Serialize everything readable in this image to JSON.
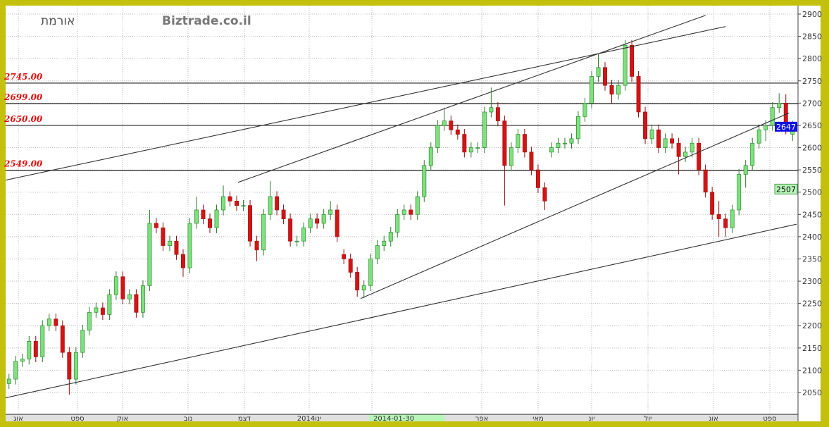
{
  "chart_data": {
    "type": "candlestick",
    "title": "אורמת",
    "watermark": "Biztrade.co.il",
    "ylim": [
      2020,
      2920
    ],
    "y_ticks": [
      2050,
      2100,
      2150,
      2200,
      2250,
      2300,
      2350,
      2400,
      2450,
      2500,
      2550,
      2600,
      2650,
      2700,
      2750,
      2800,
      2850,
      2900
    ],
    "x_tick_labels": [
      "אוג",
      "ספט",
      "אוק",
      "נוב",
      "דצמ",
      "ינו2014",
      "2014-01-30",
      "אפר",
      "מאי",
      "יונ",
      "יול",
      "אוג",
      "ספט"
    ],
    "highlighted_date": "2014-01-30",
    "grid": true,
    "last_price": "2647",
    "secondary_marker": "2507",
    "colors": {
      "up": "#7ee07e",
      "down": "#d41414",
      "last_price_bg": "#1010e0",
      "marker_bg": "#b8f5b8",
      "frame": "#c4c00e"
    },
    "horizontal_levels": [
      {
        "value": 2745,
        "label": "2745.00"
      },
      {
        "value": 2699,
        "label": "2699.00"
      },
      {
        "value": 2650,
        "label": "2650.00"
      },
      {
        "value": 2549,
        "label": "2549.00"
      }
    ],
    "trendlines": [
      {
        "from": [
          -0.5,
          2038
        ],
        "to": [
          117.6,
          2428
        ]
      },
      {
        "from": [
          -0.5,
          2527
        ],
        "to": [
          107,
          2872
        ]
      },
      {
        "from": [
          34.2,
          2522
        ],
        "to": [
          104,
          2897
        ]
      },
      {
        "from": [
          52.5,
          2261
        ],
        "to": [
          116.5,
          2678
        ]
      }
    ],
    "candles_ohlc": [
      [
        2070,
        2092,
        2058,
        2080
      ],
      [
        2080,
        2132,
        2068,
        2120
      ],
      [
        2120,
        2137,
        2108,
        2125
      ],
      [
        2125,
        2177,
        2113,
        2165
      ],
      [
        2165,
        2177,
        2118,
        2130
      ],
      [
        2130,
        2212,
        2118,
        2200
      ],
      [
        2200,
        2227,
        2188,
        2215
      ],
      [
        2215,
        2227,
        2188,
        2200
      ],
      [
        2200,
        2212,
        2128,
        2140
      ],
      [
        2140,
        2152,
        2045,
        2080
      ],
      [
        2080,
        2152,
        2068,
        2140
      ],
      [
        2140,
        2202,
        2128,
        2190
      ],
      [
        2190,
        2242,
        2178,
        2230
      ],
      [
        2230,
        2252,
        2218,
        2240
      ],
      [
        2240,
        2252,
        2213,
        2225
      ],
      [
        2225,
        2282,
        2213,
        2270
      ],
      [
        2270,
        2322,
        2258,
        2310
      ],
      [
        2310,
        2322,
        2248,
        2260
      ],
      [
        2260,
        2282,
        2248,
        2270
      ],
      [
        2270,
        2282,
        2218,
        2230
      ],
      [
        2230,
        2302,
        2218,
        2290
      ],
      [
        2290,
        2460,
        2278,
        2430
      ],
      [
        2430,
        2442,
        2408,
        2420
      ],
      [
        2420,
        2432,
        2368,
        2380
      ],
      [
        2380,
        2402,
        2368,
        2390
      ],
      [
        2390,
        2402,
        2348,
        2360
      ],
      [
        2360,
        2372,
        2310,
        2330
      ],
      [
        2330,
        2442,
        2318,
        2430
      ],
      [
        2430,
        2490,
        2418,
        2460
      ],
      [
        2460,
        2472,
        2428,
        2440
      ],
      [
        2440,
        2452,
        2408,
        2420
      ],
      [
        2420,
        2472,
        2408,
        2460
      ],
      [
        2460,
        2515,
        2448,
        2490
      ],
      [
        2490,
        2502,
        2468,
        2480
      ],
      [
        2480,
        2492,
        2458,
        2470
      ],
      [
        2470,
        2482,
        2458,
        2470
      ],
      [
        2470,
        2482,
        2378,
        2390
      ],
      [
        2390,
        2402,
        2345,
        2370
      ],
      [
        2370,
        2462,
        2358,
        2450
      ],
      [
        2450,
        2525,
        2438,
        2490
      ],
      [
        2490,
        2502,
        2448,
        2460
      ],
      [
        2460,
        2472,
        2428,
        2440
      ],
      [
        2440,
        2452,
        2378,
        2390
      ],
      [
        2390,
        2402,
        2378,
        2390
      ],
      [
        2390,
        2432,
        2378,
        2420
      ],
      [
        2420,
        2452,
        2408,
        2440
      ],
      [
        2440,
        2452,
        2418,
        2430
      ],
      [
        2430,
        2462,
        2418,
        2450
      ],
      [
        2450,
        2480,
        2438,
        2460
      ],
      [
        2460,
        2472,
        2388,
        2400
      ],
      [
        2360,
        2372,
        2338,
        2350
      ],
      [
        2350,
        2362,
        2308,
        2320
      ],
      [
        2320,
        2332,
        2265,
        2280
      ],
      [
        2280,
        2302,
        2262,
        2290
      ],
      [
        2290,
        2362,
        2278,
        2350
      ],
      [
        2350,
        2392,
        2338,
        2380
      ],
      [
        2380,
        2402,
        2368,
        2390
      ],
      [
        2390,
        2422,
        2378,
        2410
      ],
      [
        2410,
        2462,
        2398,
        2450
      ],
      [
        2450,
        2472,
        2438,
        2460
      ],
      [
        2460,
        2472,
        2438,
        2450
      ],
      [
        2450,
        2502,
        2438,
        2490
      ],
      [
        2490,
        2572,
        2478,
        2560
      ],
      [
        2560,
        2612,
        2548,
        2600
      ],
      [
        2600,
        2662,
        2588,
        2650
      ],
      [
        2650,
        2690,
        2638,
        2660
      ],
      [
        2660,
        2672,
        2628,
        2640
      ],
      [
        2640,
        2652,
        2618,
        2630
      ],
      [
        2630,
        2642,
        2578,
        2590
      ],
      [
        2590,
        2612,
        2578,
        2600
      ],
      [
        2600,
        2612,
        2588,
        2600
      ],
      [
        2600,
        2692,
        2588,
        2680
      ],
      [
        2680,
        2735,
        2668,
        2690
      ],
      [
        2690,
        2702,
        2648,
        2660
      ],
      [
        2660,
        2672,
        2470,
        2560
      ],
      [
        2560,
        2612,
        2548,
        2600
      ],
      [
        2600,
        2642,
        2588,
        2630
      ],
      [
        2630,
        2642,
        2578,
        2590
      ],
      [
        2590,
        2602,
        2538,
        2550
      ],
      [
        2550,
        2562,
        2498,
        2510
      ],
      [
        2510,
        2522,
        2460,
        2480
      ],
      [
        2590,
        2612,
        2578,
        2600
      ],
      [
        2600,
        2622,
        2588,
        2610
      ],
      [
        2610,
        2622,
        2598,
        2610
      ],
      [
        2610,
        2632,
        2598,
        2620
      ],
      [
        2620,
        2682,
        2608,
        2670
      ],
      [
        2670,
        2712,
        2658,
        2700
      ],
      [
        2700,
        2772,
        2688,
        2760
      ],
      [
        2760,
        2810,
        2748,
        2780
      ],
      [
        2780,
        2792,
        2728,
        2740
      ],
      [
        2740,
        2752,
        2700,
        2720
      ],
      [
        2720,
        2752,
        2708,
        2740
      ],
      [
        2740,
        2842,
        2728,
        2830
      ],
      [
        2830,
        2842,
        2748,
        2760
      ],
      [
        2760,
        2772,
        2668,
        2680
      ],
      [
        2680,
        2692,
        2608,
        2620
      ],
      [
        2620,
        2652,
        2608,
        2640
      ],
      [
        2640,
        2652,
        2588,
        2600
      ],
      [
        2600,
        2632,
        2588,
        2620
      ],
      [
        2620,
        2632,
        2598,
        2610
      ],
      [
        2610,
        2622,
        2540,
        2580
      ],
      [
        2580,
        2602,
        2568,
        2590
      ],
      [
        2590,
        2622,
        2578,
        2610
      ],
      [
        2610,
        2622,
        2538,
        2550
      ],
      [
        2550,
        2562,
        2488,
        2500
      ],
      [
        2500,
        2512,
        2438,
        2450
      ],
      [
        2450,
        2480,
        2400,
        2440
      ],
      [
        2440,
        2452,
        2400,
        2420
      ],
      [
        2420,
        2472,
        2408,
        2460
      ],
      [
        2460,
        2552,
        2448,
        2540
      ],
      [
        2540,
        2572,
        2510,
        2560
      ],
      [
        2560,
        2622,
        2548,
        2610
      ],
      [
        2610,
        2652,
        2598,
        2640
      ],
      [
        2640,
        2662,
        2615,
        2650
      ],
      [
        2650,
        2702,
        2638,
        2690
      ],
      [
        2690,
        2722,
        2678,
        2700
      ],
      [
        2700,
        2720,
        2630,
        2640
      ],
      [
        2630,
        2660,
        2615,
        2647
      ]
    ]
  }
}
